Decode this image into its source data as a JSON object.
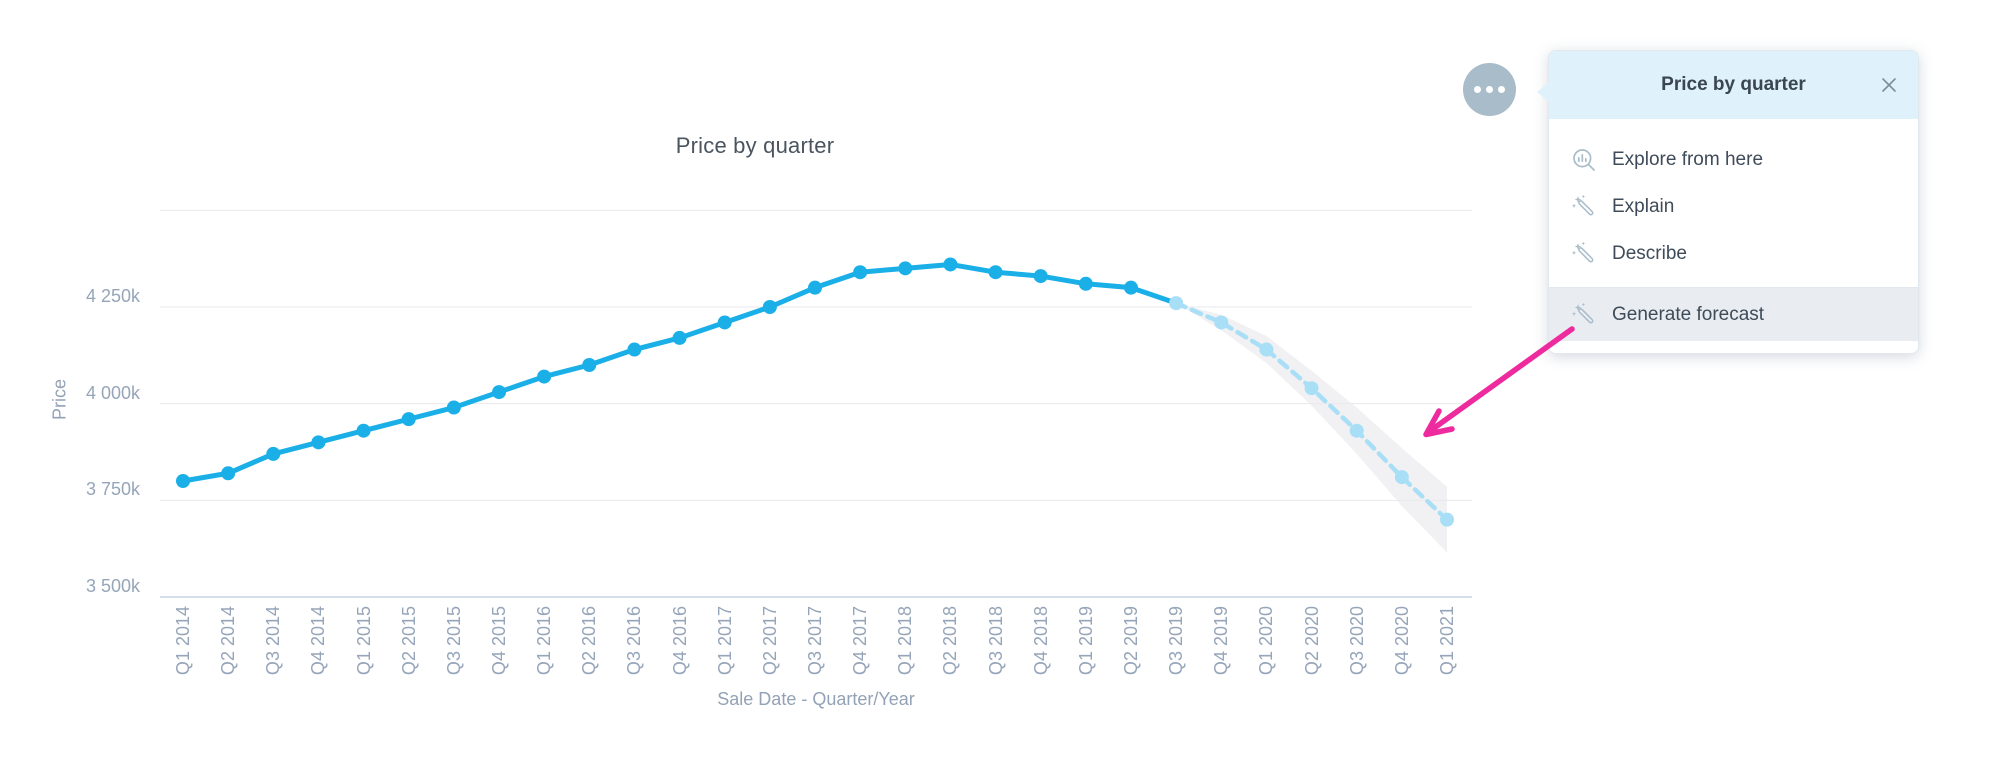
{
  "chart": {
    "title": "Price by quarter",
    "y_axis_title": "Price",
    "x_axis_title": "Sale Date - Quarter/Year"
  },
  "chart_data": {
    "type": "line",
    "title": "Price by quarter",
    "xlabel": "Sale Date - Quarter/Year",
    "ylabel": "Price",
    "grid": true,
    "legend": "none",
    "ylim": [
      3500,
      4500
    ],
    "y_ticks": [
      {
        "value": 4500,
        "label": ""
      },
      {
        "value": 4250,
        "label": "4 250k"
      },
      {
        "value": 4000,
        "label": "4 000k"
      },
      {
        "value": 3750,
        "label": "3 750k"
      },
      {
        "value": 3500,
        "label": "3 500k"
      }
    ],
    "categories": [
      "Q1 2014",
      "Q2 2014",
      "Q3 2014",
      "Q4 2014",
      "Q1 2015",
      "Q2 2015",
      "Q3 2015",
      "Q4 2015",
      "Q1 2016",
      "Q2 2016",
      "Q3 2016",
      "Q4 2016",
      "Q1 2017",
      "Q2 2017",
      "Q3 2017",
      "Q4 2017",
      "Q1 2018",
      "Q2 2018",
      "Q3 2018",
      "Q4 2018",
      "Q1 2019",
      "Q2 2019",
      "Q3 2019",
      "Q4 2019",
      "Q1 2020",
      "Q2 2020",
      "Q3 2020",
      "Q4 2020",
      "Q1 2021"
    ],
    "series": [
      {
        "name": "history",
        "style": "solid",
        "color": "#1bafe8",
        "start_index": 0,
        "values": [
          3800,
          3820,
          3870,
          3900,
          3930,
          3960,
          3990,
          4030,
          4070,
          4100,
          4140,
          4170,
          4210,
          4250,
          4300,
          4340,
          4350,
          4360,
          4340,
          4330,
          4310,
          4300
        ]
      },
      {
        "name": "forecast",
        "style": "dashed",
        "color": "#a8dff6",
        "start_index": 22,
        "values": [
          4260,
          4210,
          4140,
          4040,
          3930,
          3810,
          3700
        ],
        "band_upper": [
          4260,
          4230,
          4175,
          4085,
          3990,
          3885,
          3785
        ],
        "band_lower": [
          4260,
          4190,
          4105,
          3995,
          3870,
          3735,
          3615
        ],
        "band_color": "#e9e9ec"
      }
    ]
  },
  "menu": {
    "title": "Price by quarter",
    "items": [
      {
        "label": "Explore from here",
        "icon": "explore-chart-icon"
      },
      {
        "label": "Explain",
        "icon": "wand-icon"
      },
      {
        "label": "Describe",
        "icon": "wand-icon"
      },
      {
        "label": "Generate forecast",
        "icon": "wand-icon",
        "highlighted": true
      }
    ]
  },
  "colors": {
    "history_line": "#1bafe8",
    "forecast_line": "#a8dff6",
    "confidence_band": "#e9e9ec",
    "gridline": "#e9e9ed",
    "axis_line": "#c7d0e4",
    "tick_text": "#96a5b9",
    "annotation_arrow": "#ee2b9e",
    "menu_header_bg": "#dff1fa",
    "menu_highlight_bg": "#e9edf1",
    "more_button_bg": "#a9bcca"
  }
}
